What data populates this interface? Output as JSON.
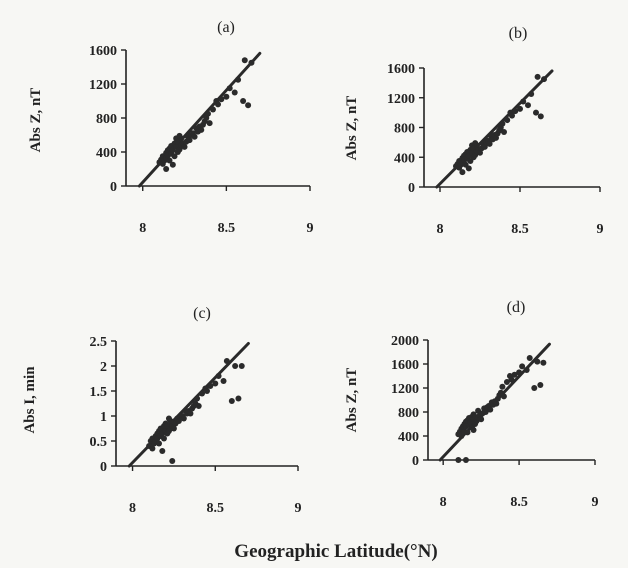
{
  "figure": {
    "x_title": "Geographic Latitude(°N)"
  },
  "chart_data": [
    {
      "type": "scatter",
      "panel_label": "(a)",
      "ylabel": "Abs Z, nT",
      "xlim": [
        7.9,
        9.0
      ],
      "ylim": [
        0,
        1600
      ],
      "x_ticks": [
        "8",
        "8.5",
        "9"
      ],
      "y_ticks": [
        "0",
        "400",
        "800",
        "1200",
        "1600"
      ],
      "fit_line": {
        "x": [
          7.98,
          8.7
        ],
        "y": [
          0,
          1560
        ]
      },
      "points": {
        "x": [
          8.1,
          8.11,
          8.12,
          8.12,
          8.13,
          8.14,
          8.14,
          8.15,
          8.15,
          8.16,
          8.16,
          8.17,
          8.17,
          8.18,
          8.19,
          8.19,
          8.2,
          8.2,
          8.21,
          8.21,
          8.22,
          8.23,
          8.23,
          8.24,
          8.25,
          8.26,
          8.27,
          8.28,
          8.29,
          8.3,
          8.31,
          8.32,
          8.33,
          8.34,
          8.35,
          8.36,
          8.37,
          8.38,
          8.39,
          8.4,
          8.42,
          8.44,
          8.45,
          8.47,
          8.5,
          8.52,
          8.55,
          8.57,
          8.6,
          8.61,
          8.63,
          8.65,
          8.14,
          8.18,
          8.22
        ],
        "y": [
          280,
          310,
          350,
          260,
          300,
          390,
          330,
          420,
          360,
          440,
          300,
          470,
          380,
          420,
          500,
          350,
          460,
          560,
          400,
          520,
          430,
          480,
          560,
          500,
          460,
          520,
          580,
          540,
          600,
          620,
          580,
          680,
          640,
          700,
          660,
          720,
          760,
          800,
          850,
          740,
          900,
          1000,
          960,
          1020,
          1050,
          1150,
          1100,
          1250,
          1000,
          1480,
          950,
          1450,
          200,
          250,
          590
        ]
      }
    },
    {
      "type": "scatter",
      "panel_label": "(b)",
      "ylabel": "Abs Z, nT",
      "xlim": [
        7.9,
        9.0
      ],
      "ylim": [
        0,
        1600
      ],
      "x_ticks": [
        "8",
        "8.5",
        "9"
      ],
      "y_ticks": [
        "0",
        "400",
        "800",
        "1200",
        "1600"
      ],
      "fit_line": {
        "x": [
          7.98,
          8.7
        ],
        "y": [
          0,
          1560
        ]
      },
      "points": {
        "x": [
          8.1,
          8.11,
          8.12,
          8.12,
          8.13,
          8.14,
          8.14,
          8.15,
          8.15,
          8.16,
          8.16,
          8.17,
          8.17,
          8.18,
          8.19,
          8.19,
          8.2,
          8.2,
          8.21,
          8.21,
          8.22,
          8.23,
          8.23,
          8.24,
          8.25,
          8.26,
          8.27,
          8.28,
          8.29,
          8.3,
          8.31,
          8.32,
          8.33,
          8.34,
          8.35,
          8.36,
          8.37,
          8.38,
          8.39,
          8.4,
          8.42,
          8.44,
          8.45,
          8.47,
          8.5,
          8.52,
          8.55,
          8.57,
          8.6,
          8.61,
          8.63,
          8.65,
          8.14,
          8.18,
          8.22
        ],
        "y": [
          280,
          310,
          350,
          260,
          300,
          390,
          330,
          420,
          360,
          440,
          300,
          470,
          380,
          420,
          500,
          350,
          460,
          560,
          400,
          520,
          430,
          480,
          560,
          500,
          460,
          520,
          580,
          540,
          600,
          620,
          580,
          680,
          640,
          700,
          660,
          720,
          760,
          800,
          850,
          740,
          900,
          1000,
          960,
          1020,
          1050,
          1150,
          1100,
          1250,
          1000,
          1480,
          950,
          1450,
          200,
          250,
          590
        ]
      }
    },
    {
      "type": "scatter",
      "panel_label": "(c)",
      "ylabel": "Abs I, min",
      "xlim": [
        7.9,
        9.0
      ],
      "ylim": [
        0,
        2.5
      ],
      "x_ticks": [
        "8",
        "8.5",
        "9"
      ],
      "y_ticks": [
        "0",
        "0.5",
        "1",
        "1.5",
        "2",
        "2.5"
      ],
      "fit_line": {
        "x": [
          7.98,
          8.7
        ],
        "y": [
          0,
          2.45
        ]
      },
      "points": {
        "x": [
          8.1,
          8.11,
          8.12,
          8.12,
          8.13,
          8.14,
          8.14,
          8.15,
          8.15,
          8.16,
          8.16,
          8.17,
          8.17,
          8.18,
          8.19,
          8.19,
          8.2,
          8.2,
          8.21,
          8.21,
          8.22,
          8.23,
          8.23,
          8.24,
          8.25,
          8.26,
          8.27,
          8.28,
          8.29,
          8.3,
          8.31,
          8.32,
          8.33,
          8.34,
          8.35,
          8.36,
          8.37,
          8.38,
          8.39,
          8.4,
          8.42,
          8.44,
          8.45,
          8.47,
          8.5,
          8.52,
          8.55,
          8.57,
          8.6,
          8.62,
          8.64,
          8.66,
          8.24,
          8.18,
          8.22
        ],
        "y": [
          0.4,
          0.5,
          0.55,
          0.35,
          0.45,
          0.6,
          0.5,
          0.65,
          0.55,
          0.7,
          0.45,
          0.75,
          0.6,
          0.65,
          0.8,
          0.55,
          0.7,
          0.85,
          0.65,
          0.8,
          0.7,
          0.75,
          0.9,
          0.8,
          0.75,
          0.85,
          0.95,
          0.9,
          1.0,
          1.0,
          0.95,
          1.1,
          1.05,
          1.1,
          1.05,
          1.15,
          1.2,
          1.25,
          1.35,
          1.2,
          1.45,
          1.55,
          1.5,
          1.6,
          1.65,
          1.8,
          1.7,
          2.1,
          1.3,
          2.0,
          1.35,
          2.0,
          0.1,
          0.3,
          0.95
        ]
      }
    },
    {
      "type": "scatter",
      "panel_label": "(d)",
      "ylabel": "Abs Z, nT",
      "xlim": [
        7.9,
        9.0
      ],
      "ylim": [
        0,
        2000
      ],
      "x_ticks": [
        "8",
        "8.5",
        "9"
      ],
      "y_ticks": [
        "0",
        "400",
        "800",
        "1200",
        "1600",
        "2000"
      ],
      "fit_line": {
        "x": [
          7.98,
          8.7
        ],
        "y": [
          0,
          1930
        ]
      },
      "points": {
        "x": [
          8.1,
          8.11,
          8.12,
          8.12,
          8.13,
          8.14,
          8.14,
          8.15,
          8.15,
          8.16,
          8.16,
          8.17,
          8.17,
          8.18,
          8.19,
          8.19,
          8.2,
          8.2,
          8.21,
          8.21,
          8.22,
          8.23,
          8.23,
          8.24,
          8.25,
          8.26,
          8.27,
          8.28,
          8.29,
          8.3,
          8.31,
          8.32,
          8.33,
          8.34,
          8.35,
          8.36,
          8.37,
          8.38,
          8.39,
          8.4,
          8.42,
          8.44,
          8.45,
          8.47,
          8.5,
          8.52,
          8.55,
          8.57,
          8.6,
          8.62,
          8.64,
          8.66,
          8.1,
          8.15,
          8.2
        ],
        "y": [
          430,
          470,
          520,
          400,
          560,
          600,
          480,
          640,
          560,
          660,
          460,
          700,
          590,
          620,
          720,
          540,
          680,
          760,
          600,
          720,
          650,
          700,
          820,
          740,
          680,
          780,
          860,
          800,
          880,
          900,
          840,
          960,
          920,
          980,
          940,
          1020,
          1080,
          1120,
          1220,
          1060,
          1300,
          1400,
          1340,
          1420,
          1460,
          1560,
          1500,
          1700,
          1200,
          1640,
          1250,
          1620,
          0,
          0,
          500
        ]
      }
    }
  ]
}
